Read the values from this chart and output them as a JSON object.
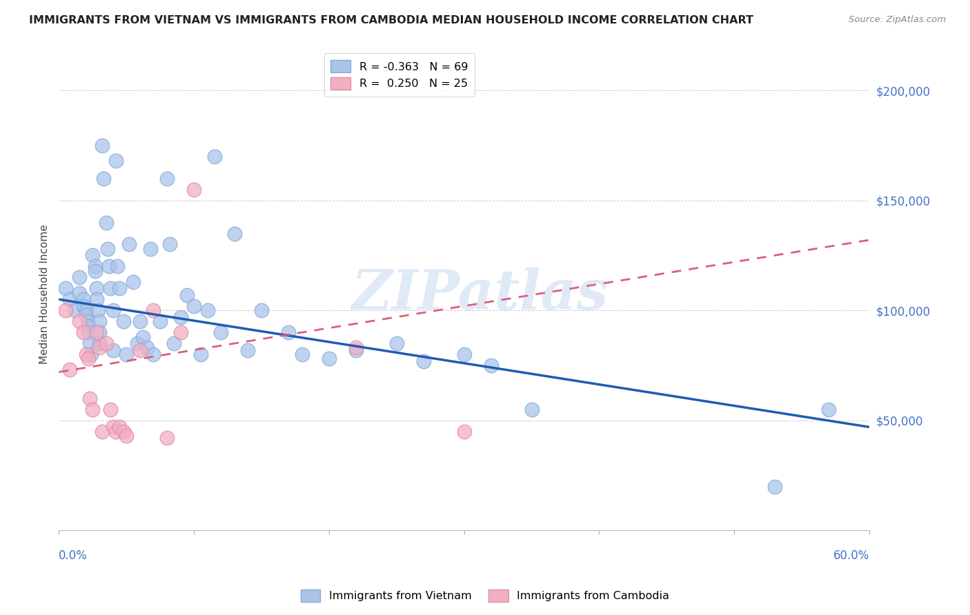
{
  "title": "IMMIGRANTS FROM VIETNAM VS IMMIGRANTS FROM CAMBODIA MEDIAN HOUSEHOLD INCOME CORRELATION CHART",
  "source": "Source: ZipAtlas.com",
  "ylabel": "Median Household Income",
  "xlim": [
    0.0,
    0.6
  ],
  "ylim": [
    0,
    215000
  ],
  "vietnam_color": "#aac4ea",
  "vietnam_edge": "#85aad8",
  "cambodia_color": "#f2afc0",
  "cambodia_edge": "#e08aaa",
  "vietnam_line_color": "#1f5bb5",
  "cambodia_line_color": "#d9607a",
  "watermark_text": "ZIPatlas",
  "watermark_color": "#c8d8f0",
  "watermark_alpha": 0.55,
  "legend1_label": "R = -0.363   N = 69",
  "legend2_label": "R =  0.250   N = 25",
  "bottom_legend1": "Immigrants from Vietnam",
  "bottom_legend2": "Immigrants from Cambodia",
  "vietnam_line_y0": 105000,
  "vietnam_line_y1": 47000,
  "cambodia_line_y0": 72000,
  "cambodia_line_y1": 132000,
  "vietnam_x": [
    0.005,
    0.008,
    0.012,
    0.015,
    0.015,
    0.018,
    0.018,
    0.02,
    0.02,
    0.022,
    0.022,
    0.022,
    0.023,
    0.024,
    0.025,
    0.027,
    0.027,
    0.028,
    0.028,
    0.029,
    0.03,
    0.03,
    0.03,
    0.032,
    0.033,
    0.035,
    0.036,
    0.037,
    0.038,
    0.04,
    0.04,
    0.042,
    0.043,
    0.045,
    0.048,
    0.05,
    0.052,
    0.055,
    0.058,
    0.06,
    0.062,
    0.065,
    0.068,
    0.07,
    0.075,
    0.08,
    0.082,
    0.085,
    0.09,
    0.095,
    0.1,
    0.105,
    0.11,
    0.115,
    0.12,
    0.13,
    0.14,
    0.15,
    0.17,
    0.18,
    0.2,
    0.22,
    0.25,
    0.27,
    0.3,
    0.32,
    0.35,
    0.53,
    0.57
  ],
  "vietnam_y": [
    110000,
    105000,
    100000,
    115000,
    108000,
    105000,
    102000,
    100000,
    98000,
    95000,
    93000,
    90000,
    85000,
    80000,
    125000,
    120000,
    118000,
    110000,
    105000,
    100000,
    95000,
    90000,
    85000,
    175000,
    160000,
    140000,
    128000,
    120000,
    110000,
    100000,
    82000,
    168000,
    120000,
    110000,
    95000,
    80000,
    130000,
    113000,
    85000,
    95000,
    88000,
    83000,
    128000,
    80000,
    95000,
    160000,
    130000,
    85000,
    97000,
    107000,
    102000,
    80000,
    100000,
    170000,
    90000,
    135000,
    82000,
    100000,
    90000,
    80000,
    78000,
    82000,
    85000,
    77000,
    80000,
    75000,
    55000,
    20000,
    55000
  ],
  "cambodia_x": [
    0.005,
    0.008,
    0.015,
    0.018,
    0.02,
    0.022,
    0.023,
    0.025,
    0.028,
    0.03,
    0.032,
    0.035,
    0.038,
    0.04,
    0.042,
    0.045,
    0.048,
    0.05,
    0.06,
    0.07,
    0.08,
    0.09,
    0.1,
    0.22,
    0.3
  ],
  "cambodia_y": [
    100000,
    73000,
    95000,
    90000,
    80000,
    78000,
    60000,
    55000,
    90000,
    83000,
    45000,
    85000,
    55000,
    47000,
    45000,
    47000,
    45000,
    43000,
    82000,
    100000,
    42000,
    90000,
    155000,
    83000,
    45000
  ]
}
